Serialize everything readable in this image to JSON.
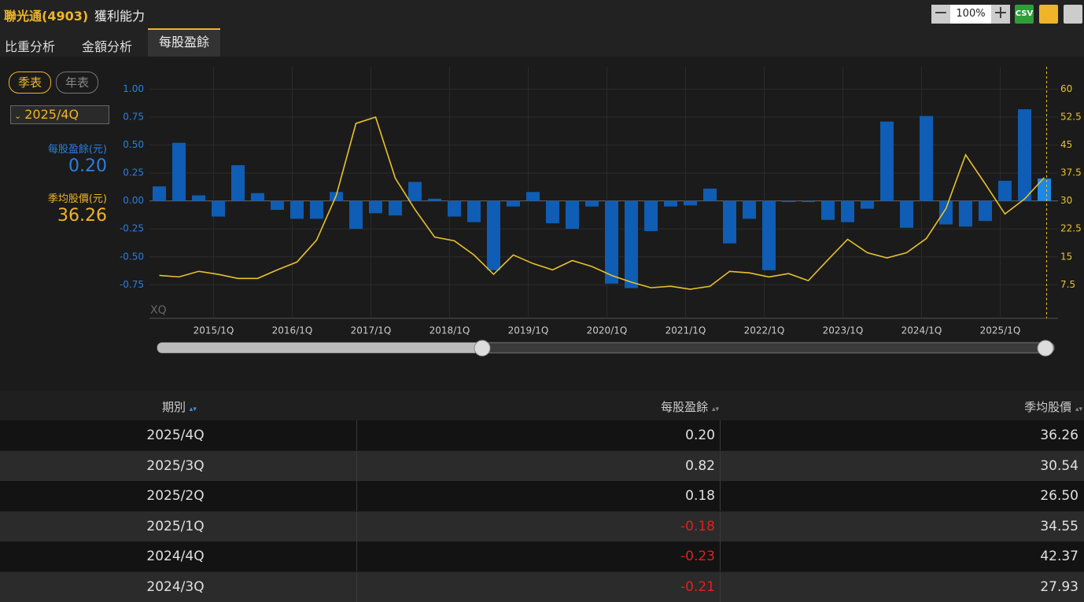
{
  "header": {
    "title": "聯光通(4903)",
    "subtitle": "獲利能力",
    "zoom": "100%",
    "csv": "CSV"
  },
  "tabs": [
    "比重分析",
    "金額分析",
    "每股盈餘"
  ],
  "period_buttons": [
    "季表",
    "年表"
  ],
  "selected_period": "2025/4Q",
  "selected": {
    "eps": "0.20",
    "price": "36.26"
  },
  "watermark": "XQ",
  "chart_data": {
    "type": "bar",
    "categories": [
      null,
      null,
      "2015/1Q",
      null,
      null,
      null,
      "2016/1Q",
      null,
      null,
      null,
      "2017/1Q",
      null,
      null,
      null,
      "2018/1Q",
      null,
      null,
      null,
      "2019/1Q",
      null,
      null,
      null,
      "2020/1Q",
      null,
      null,
      null,
      "2021/1Q",
      null,
      null,
      null,
      "2022/1Q",
      null,
      null,
      null,
      "2023/1Q",
      null,
      null,
      null,
      "2024/1Q",
      null,
      null,
      null,
      "2025/1Q",
      null,
      null,
      null
    ],
    "series": [
      {
        "name": "每股盈餘(元)",
        "color": "#0f5db4",
        "type": "bar",
        "values": [
          0.13,
          0.52,
          0.05,
          -0.14,
          0.32,
          0.07,
          -0.08,
          -0.16,
          -0.16,
          0.08,
          -0.25,
          -0.11,
          -0.13,
          0.17,
          0.02,
          -0.14,
          -0.19,
          -0.62,
          -0.05,
          0.08,
          -0.2,
          -0.25,
          -0.05,
          -0.74,
          -0.78,
          -0.27,
          -0.05,
          -0.04,
          0.11,
          -0.38,
          -0.16,
          -0.62,
          -0.01,
          -0.01,
          -0.17,
          -0.19,
          -0.07,
          0.71,
          -0.24,
          0.76,
          -0.21,
          -0.23,
          -0.18,
          0.18,
          0.82,
          0.2
        ]
      },
      {
        "name": "季均股價(元)",
        "color": "#e8c22c",
        "type": "line",
        "axis": "y2",
        "values": [
          10.0,
          9.6,
          11.1,
          10.3,
          9.2,
          9.2,
          11.5,
          13.6,
          19.5,
          31.5,
          50.8,
          52.5,
          36.1,
          27.7,
          20.3,
          19.3,
          15.5,
          10.3,
          15.5,
          13.2,
          11.5,
          14.0,
          12.4,
          10.0,
          8.2,
          6.7,
          7.1,
          6.3,
          7.1,
          11.1,
          10.7,
          9.6,
          10.5,
          8.6,
          14.2,
          19.7,
          16.1,
          14.7,
          16.1,
          19.9,
          27.93,
          42.37,
          34.55,
          26.5,
          30.54,
          36.26
        ]
      }
    ],
    "ylim": [
      -1.05,
      1.2
    ],
    "yticks": [
      {
        "value": 1,
        "label": "1.00"
      },
      {
        "value": 0.75,
        "label": "0.75"
      },
      {
        "value": 0.5,
        "label": "0.50"
      },
      {
        "value": 0.25,
        "label": "0.25"
      },
      {
        "value": 0,
        "label": "0.00"
      },
      {
        "value": -0.25,
        "label": "-0.25"
      },
      {
        "value": -0.5,
        "label": "-0.50"
      },
      {
        "value": -0.75,
        "label": "-0.75"
      }
    ],
    "y2lim": [
      -1.5,
      66
    ],
    "y2ticks": [
      60,
      52.5,
      45,
      37.5,
      30,
      22.5,
      15,
      7.5
    ],
    "grid": true
  },
  "table": {
    "header": [
      "期別",
      "每股盈餘",
      "季均股價"
    ],
    "rows": [
      [
        "2025/4Q",
        "0.20",
        "36.26"
      ],
      [
        "2025/3Q",
        "0.82",
        "30.54"
      ],
      [
        "2025/2Q",
        "0.18",
        "26.50"
      ],
      [
        "2025/1Q",
        "-0.18",
        "34.55"
      ],
      [
        "2024/4Q",
        "-0.23",
        "42.37"
      ],
      [
        "2024/3Q",
        "-0.21",
        "27.93"
      ]
    ]
  }
}
